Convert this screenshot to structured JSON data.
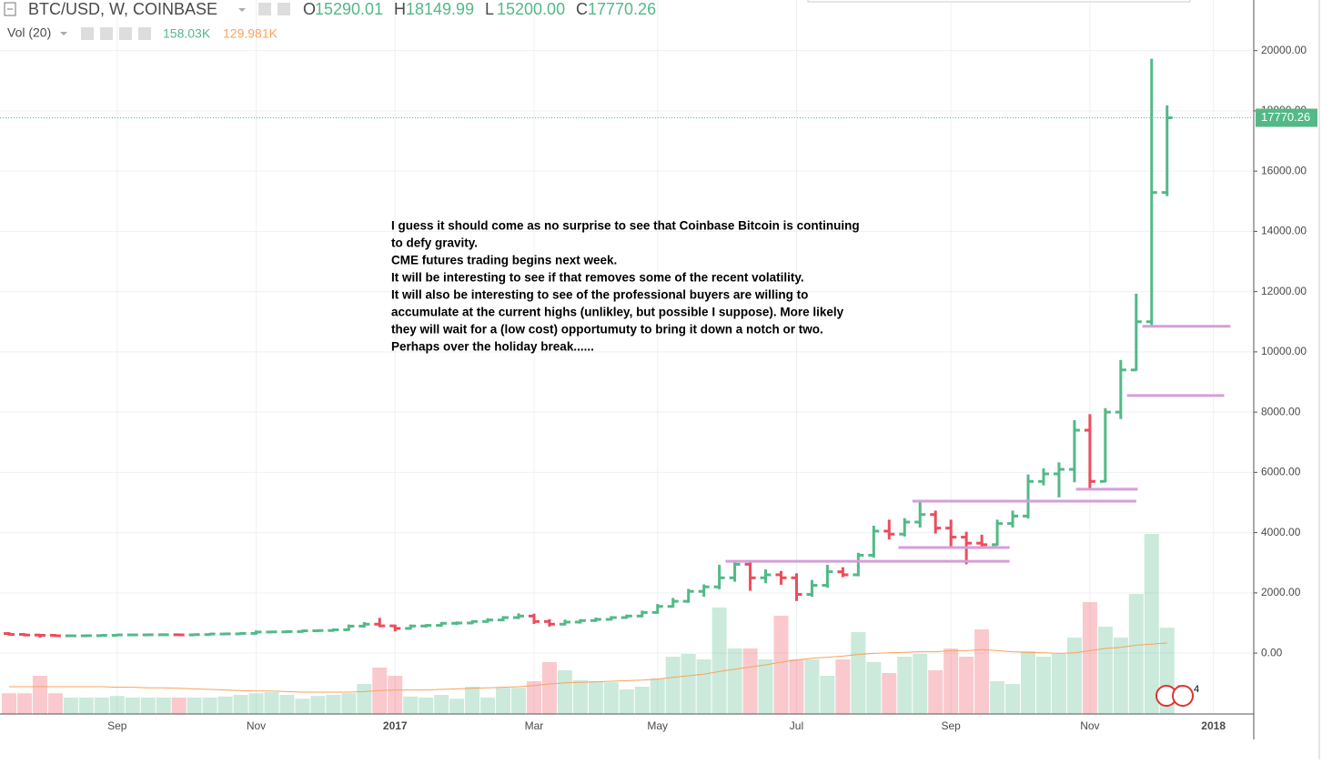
{
  "header": {
    "symbol": "BTC/USD, W, COINBASE",
    "ohlc": [
      {
        "label": "O",
        "value": "15290.01"
      },
      {
        "label": "H",
        "value": "18149.99"
      },
      {
        "label": "L",
        "value": "15200.00"
      },
      {
        "label": "C",
        "value": "17770.26"
      }
    ],
    "vol_label": "Vol (20)",
    "vol_value": "158.03K",
    "vol_ma_value": "129.981K"
  },
  "chart_data": {
    "type": "ohlc",
    "categories": [
      null,
      null,
      null,
      null,
      null,
      null,
      null,
      "Sep",
      null,
      null,
      null,
      null,
      null,
      null,
      null,
      null,
      "Nov",
      null,
      null,
      null,
      null,
      null,
      null,
      null,
      null,
      "2017",
      null,
      null,
      null,
      null,
      null,
      null,
      null,
      null,
      "Mar",
      null,
      null,
      null,
      null,
      null,
      null,
      null,
      "May",
      null,
      null,
      null,
      null,
      null,
      null,
      null,
      null,
      "Jul",
      null,
      null,
      null,
      null,
      null,
      null,
      null,
      null,
      null,
      "Sep",
      null,
      null,
      null,
      null,
      null,
      null,
      null,
      null,
      "Nov",
      null,
      null,
      null,
      null,
      null,
      null,
      null,
      "2018"
    ],
    "open": [
      650,
      620,
      600,
      590,
      575,
      575,
      580,
      590,
      605,
      605,
      610,
      610,
      605,
      615,
      635,
      640,
      655,
      700,
      705,
      715,
      740,
      750,
      775,
      895,
      960,
      905,
      820,
      900,
      920,
      990,
      1000,
      1050,
      1100,
      1180,
      1230,
      1050,
      960,
      1030,
      1080,
      1120,
      1180,
      1230,
      1350,
      1550,
      1720,
      2050,
      2200,
      2500,
      2950,
      2500,
      2600,
      2500,
      1950,
      2250,
      2700,
      2600,
      3250,
      4050,
      3950,
      4350,
      4600,
      4150,
      3850,
      3650,
      3600,
      4300,
      4550,
      5700,
      5950,
      6100,
      7400,
      5700,
      8000,
      9400,
      11000,
      15290.01,
      null,
      null,
      null
    ],
    "high": [
      665,
      630,
      610,
      600,
      590,
      590,
      600,
      612,
      615,
      620,
      625,
      620,
      620,
      640,
      650,
      660,
      720,
      715,
      730,
      745,
      760,
      790,
      920,
      1000,
      1140,
      915,
      920,
      930,
      1000,
      1020,
      1060,
      1130,
      1200,
      1290,
      1280,
      1100,
      1080,
      1100,
      1150,
      1200,
      1250,
      1380,
      1600,
      1800,
      2100,
      2250,
      2900,
      3000,
      2980,
      2750,
      2700,
      2620,
      2400,
      2900,
      2820,
      3300,
      4200,
      4400,
      4450,
      5000,
      4700,
      4400,
      4000,
      3900,
      4400,
      4700,
      5900,
      6100,
      6300,
      7700,
      7900,
      8100,
      9700,
      11900,
      19700,
      18149.99,
      null,
      null,
      null
    ],
    "low": [
      610,
      590,
      540,
      565,
      565,
      570,
      575,
      585,
      595,
      600,
      600,
      595,
      600,
      610,
      625,
      635,
      645,
      690,
      695,
      710,
      730,
      745,
      770,
      880,
      890,
      750,
      810,
      880,
      910,
      960,
      990,
      1040,
      1090,
      1160,
      1000,
      910,
      950,
      1010,
      1070,
      1110,
      1170,
      1220,
      1340,
      1540,
      1700,
      1900,
      2150,
      2400,
      2100,
      2350,
      2300,
      1760,
      1900,
      2200,
      2550,
      2580,
      3200,
      3800,
      3900,
      4200,
      4000,
      3500,
      2980,
      3550,
      3600,
      4200,
      4500,
      5600,
      5200,
      5700,
      5500,
      5700,
      7800,
      9400,
      10900,
      15200,
      null,
      null,
      null
    ],
    "close": [
      620,
      600,
      590,
      575,
      575,
      580,
      590,
      605,
      605,
      610,
      610,
      605,
      615,
      635,
      640,
      655,
      700,
      705,
      715,
      740,
      750,
      775,
      895,
      960,
      905,
      820,
      900,
      920,
      990,
      1000,
      1050,
      1100,
      1180,
      1230,
      1050,
      960,
      1030,
      1080,
      1120,
      1180,
      1230,
      1350,
      1550,
      1720,
      2050,
      2200,
      2500,
      2950,
      2500,
      2600,
      2500,
      1950,
      2250,
      2700,
      2600,
      3250,
      4050,
      3950,
      4350,
      4600,
      4150,
      3850,
      3650,
      3600,
      4300,
      4550,
      5700,
      5950,
      6100,
      7400,
      5700,
      8000,
      9400,
      11000,
      15290.01,
      17770.26,
      null,
      null,
      null
    ],
    "up_color": "#53b987",
    "down_color": "#eb4d5c",
    "volume": [
      38,
      38,
      70,
      38,
      30,
      30,
      30,
      33,
      30,
      30,
      30,
      30,
      30,
      30,
      32,
      35,
      38,
      40,
      35,
      28,
      33,
      35,
      38,
      55,
      85,
      70,
      32,
      30,
      35,
      28,
      50,
      30,
      48,
      48,
      60,
      95,
      80,
      62,
      60,
      58,
      45,
      50,
      65,
      105,
      110,
      100,
      195,
      120,
      120,
      100,
      180,
      100,
      100,
      70,
      100,
      150,
      95,
      75,
      105,
      110,
      80,
      120,
      105,
      155,
      60,
      55,
      115,
      105,
      110,
      140,
      205,
      160,
      140,
      220,
      330,
      158.03,
      null,
      null,
      null
    ],
    "volume_ma": [
      50,
      50,
      50,
      50,
      50,
      50,
      50,
      49,
      49,
      48,
      48,
      47,
      46,
      45,
      44,
      43,
      42,
      42,
      41,
      40,
      40,
      40,
      40,
      41,
      43,
      44,
      44,
      44,
      45,
      46,
      47,
      48,
      49,
      50,
      52,
      55,
      57,
      58,
      59,
      60,
      61,
      62,
      64,
      67,
      70,
      73,
      78,
      82,
      86,
      90,
      95,
      99,
      102,
      104,
      106,
      109,
      111,
      112,
      113,
      114,
      114,
      116,
      116,
      118,
      116,
      114,
      113,
      112,
      111,
      112,
      116,
      120,
      122,
      126,
      128,
      129.981,
      null,
      null,
      null
    ],
    "vol_lim": [
      0,
      400
    ],
    "ma_color": "#f7a35c",
    "ylim": [
      -2020,
      21680
    ],
    "yticks": [
      {
        "value": 0,
        "label": "0.00"
      },
      {
        "value": 2000,
        "label": "2000.00"
      },
      {
        "value": 4000,
        "label": "4000.00"
      },
      {
        "value": 6000,
        "label": "6000.00"
      },
      {
        "value": 8000,
        "label": "8000.00"
      },
      {
        "value": 10000,
        "label": "10000.00"
      },
      {
        "value": 12000,
        "label": "12000.00"
      },
      {
        "value": 14000,
        "label": "14000.00"
      },
      {
        "value": 16000,
        "label": "16000.00"
      },
      {
        "value": 18000,
        "label": "18000.00"
      },
      {
        "value": 20000,
        "label": "20000.00"
      }
    ],
    "grid": true,
    "hlines": [
      {
        "y": 3050,
        "x": [
          46.4,
          64.8
        ]
      },
      {
        "y": 3505,
        "x": [
          57.6,
          64.8
        ]
      },
      {
        "y": 5045,
        "x": [
          58.5,
          73
        ]
      },
      {
        "y": 5440,
        "x": [
          69.1,
          73.1
        ]
      },
      {
        "y": 8550,
        "x": [
          72.4,
          78.7
        ]
      },
      {
        "y": 10850,
        "x": [
          73.4,
          79.1
        ]
      }
    ],
    "hline_color": "#d59fd8",
    "annotation": [
      "I guess it should come as no surprise to see that Coinbase Bitcoin is continuing",
      "to defy gravity.",
      "CME futures trading begins next week.",
      "It will be interesting to see if that removes some of the recent volatility.",
      "It will also be interesting to see of the professional buyers are willing to",
      "accumulate at the current highs (unlikley, but possible I suppose).  More likely",
      "they will wait for a (low cost) opportumuty to bring it down a notch or two.",
      "Perhaps over the holiday break......"
    ],
    "events": [
      "5",
      "4"
    ]
  }
}
